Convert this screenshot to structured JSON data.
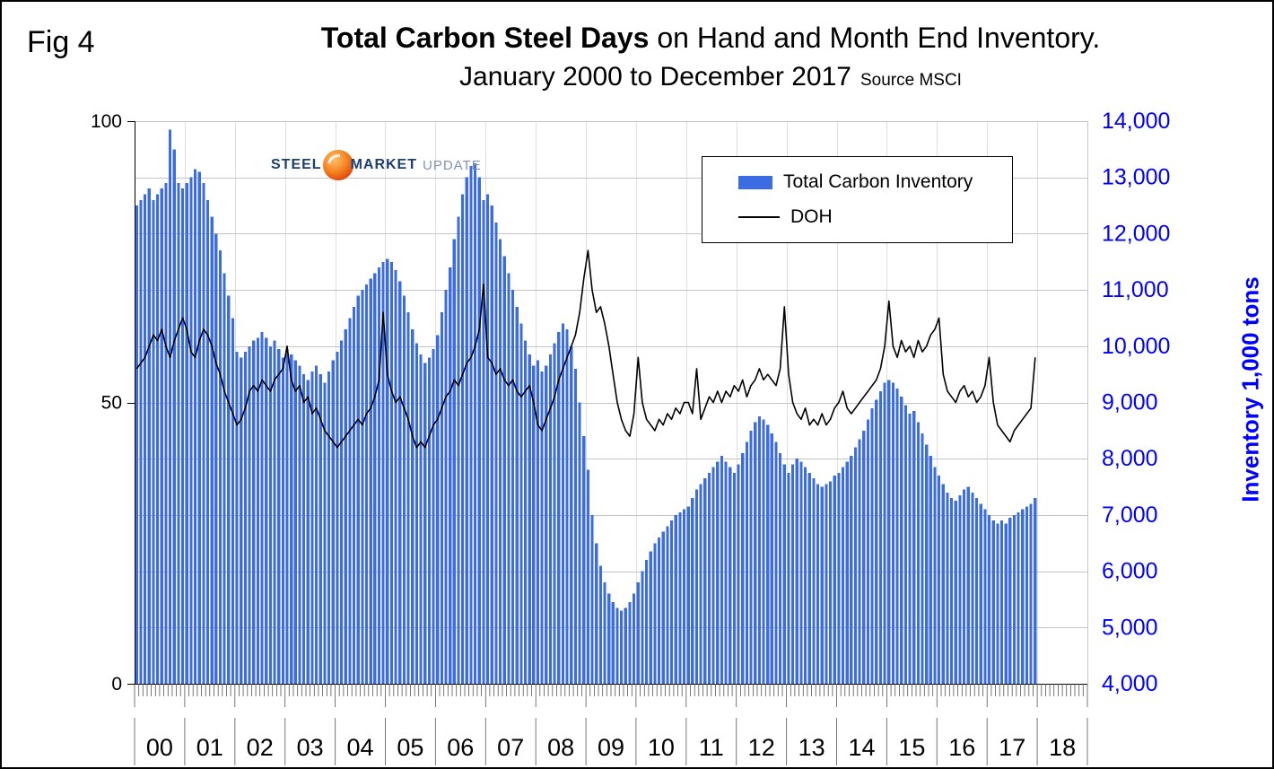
{
  "fig_label": "Fig 4",
  "title": {
    "bold": "Total Carbon Steel Days",
    "rest": " on Hand and Month End Inventory.",
    "line2": "January 2000 to December 2017",
    "source": "Source MSCI"
  },
  "logo": {
    "steel": "STEEL",
    "market": "MARKET",
    "update": "UPDATE"
  },
  "legend": {
    "inventory_label": "Total Carbon Inventory",
    "doh_label": "DOH"
  },
  "chart_data": {
    "type": "combo",
    "x_years": [
      "00",
      "01",
      "02",
      "03",
      "04",
      "05",
      "06",
      "07",
      "08",
      "09",
      "10",
      "11",
      "12",
      "13",
      "14",
      "15",
      "16",
      "17",
      "18"
    ],
    "months_per_year": 12,
    "data_start": "January 2000",
    "data_end": "December 2017",
    "left_axis": {
      "min": 0,
      "max": 100,
      "ticks": [
        0,
        50,
        100
      ],
      "tick_labels": [
        "0",
        "50",
        "100"
      ],
      "color": "#000000"
    },
    "right_axis": {
      "min": 4000,
      "max": 14000,
      "step": 1000,
      "tick_labels": [
        "4,000",
        "5,000",
        "6,000",
        "7,000",
        "8,000",
        "9,000",
        "10,000",
        "11,000",
        "12,000",
        "13,000",
        "14,000"
      ],
      "label": "Inventory 1,000 tons",
      "color": "#0000ff"
    },
    "grid_color": "#c4c4c4",
    "series": [
      {
        "name": "Total Carbon Inventory",
        "type": "bar",
        "axis": "right",
        "color": "#3b6ce2",
        "values": [
          12500,
          12600,
          12700,
          12800,
          12600,
          12700,
          12800,
          12900,
          13850,
          13500,
          12900,
          12800,
          12900,
          13000,
          13150,
          13100,
          12900,
          12600,
          12300,
          12000,
          11700,
          11300,
          10900,
          10500,
          9900,
          9800,
          9900,
          10000,
          10100,
          10150,
          10250,
          10150,
          10000,
          10100,
          9950,
          9800,
          9950,
          9850,
          9750,
          9650,
          9500,
          9400,
          9550,
          9650,
          9500,
          9350,
          9550,
          9750,
          9900,
          10100,
          10300,
          10500,
          10700,
          10900,
          11000,
          11100,
          11200,
          11300,
          11400,
          11500,
          11550,
          11500,
          11350,
          11150,
          10900,
          10600,
          10300,
          10050,
          9850,
          9700,
          9800,
          9950,
          10200,
          10600,
          11000,
          11400,
          11900,
          12300,
          12700,
          13000,
          13200,
          13250,
          13000,
          12600,
          12700,
          12500,
          12200,
          11900,
          11600,
          11300,
          11000,
          10700,
          10400,
          10100,
          9850,
          9650,
          9750,
          9550,
          9650,
          9850,
          10050,
          10250,
          10400,
          10300,
          10000,
          9600,
          9000,
          8400,
          7800,
          7000,
          6500,
          6100,
          5800,
          5600,
          5450,
          5350,
          5300,
          5350,
          5450,
          5600,
          5800,
          6000,
          6200,
          6350,
          6500,
          6600,
          6700,
          6800,
          6900,
          7000,
          7050,
          7100,
          7150,
          7300,
          7450,
          7550,
          7650,
          7750,
          7850,
          7950,
          8050,
          7950,
          7850,
          7750,
          7900,
          8100,
          8300,
          8500,
          8650,
          8750,
          8700,
          8600,
          8450,
          8300,
          8100,
          7900,
          7750,
          7900,
          8000,
          7950,
          7850,
          7750,
          7650,
          7550,
          7500,
          7550,
          7600,
          7700,
          7750,
          7850,
          7950,
          8050,
          8200,
          8350,
          8500,
          8700,
          8900,
          9050,
          9200,
          9350,
          9400,
          9350,
          9250,
          9100,
          8950,
          8800,
          8850,
          8650,
          8450,
          8250,
          8050,
          7850,
          7700,
          7550,
          7400,
          7300,
          7250,
          7350,
          7450,
          7500,
          7400,
          7300,
          7200,
          7100,
          7000,
          6900,
          6850,
          6900,
          6850,
          6950,
          7000,
          7050,
          7100,
          7150,
          7200,
          7300
        ]
      },
      {
        "name": "DOH",
        "type": "line",
        "axis": "left",
        "color": "#000000",
        "values": [
          56,
          57,
          58,
          60,
          62,
          61,
          63,
          60,
          58,
          61,
          63,
          65,
          63,
          59,
          58,
          61,
          63,
          62,
          60,
          57,
          55,
          52,
          50,
          48,
          46,
          47,
          49,
          52,
          53,
          52,
          54,
          53,
          52,
          54,
          55,
          56,
          60,
          54,
          52,
          53,
          50,
          51,
          48,
          49,
          47,
          45,
          44,
          43,
          42,
          43,
          44,
          45,
          46,
          47,
          46,
          48,
          49,
          51,
          54,
          66,
          55,
          52,
          50,
          51,
          49,
          47,
          44,
          42,
          43,
          42,
          44,
          46,
          47,
          49,
          51,
          52,
          54,
          53,
          55,
          57,
          58,
          60,
          63,
          71,
          58,
          57,
          55,
          56,
          54,
          53,
          54,
          52,
          51,
          52,
          53,
          50,
          46,
          45,
          47,
          49,
          51,
          54,
          56,
          58,
          60,
          62,
          66,
          72,
          77,
          70,
          66,
          67,
          64,
          60,
          55,
          50,
          47,
          45,
          44,
          48,
          58,
          50,
          47,
          46,
          45,
          47,
          46,
          48,
          47,
          49,
          48,
          50,
          50,
          48,
          56,
          47,
          49,
          51,
          50,
          52,
          50,
          52,
          51,
          53,
          52,
          54,
          51,
          53,
          54,
          56,
          54,
          55,
          54,
          53,
          56,
          67,
          55,
          50,
          48,
          47,
          49,
          46,
          47,
          46,
          48,
          46,
          47,
          49,
          50,
          52,
          49,
          48,
          49,
          50,
          51,
          52,
          53,
          54,
          56,
          60,
          68,
          60,
          58,
          61,
          59,
          60,
          58,
          61,
          59,
          60,
          62,
          63,
          65,
          55,
          52,
          51,
          50,
          52,
          53,
          51,
          52,
          50,
          51,
          53,
          58,
          50,
          46,
          45,
          44,
          43,
          45,
          46,
          47,
          48,
          49,
          58
        ]
      }
    ]
  }
}
